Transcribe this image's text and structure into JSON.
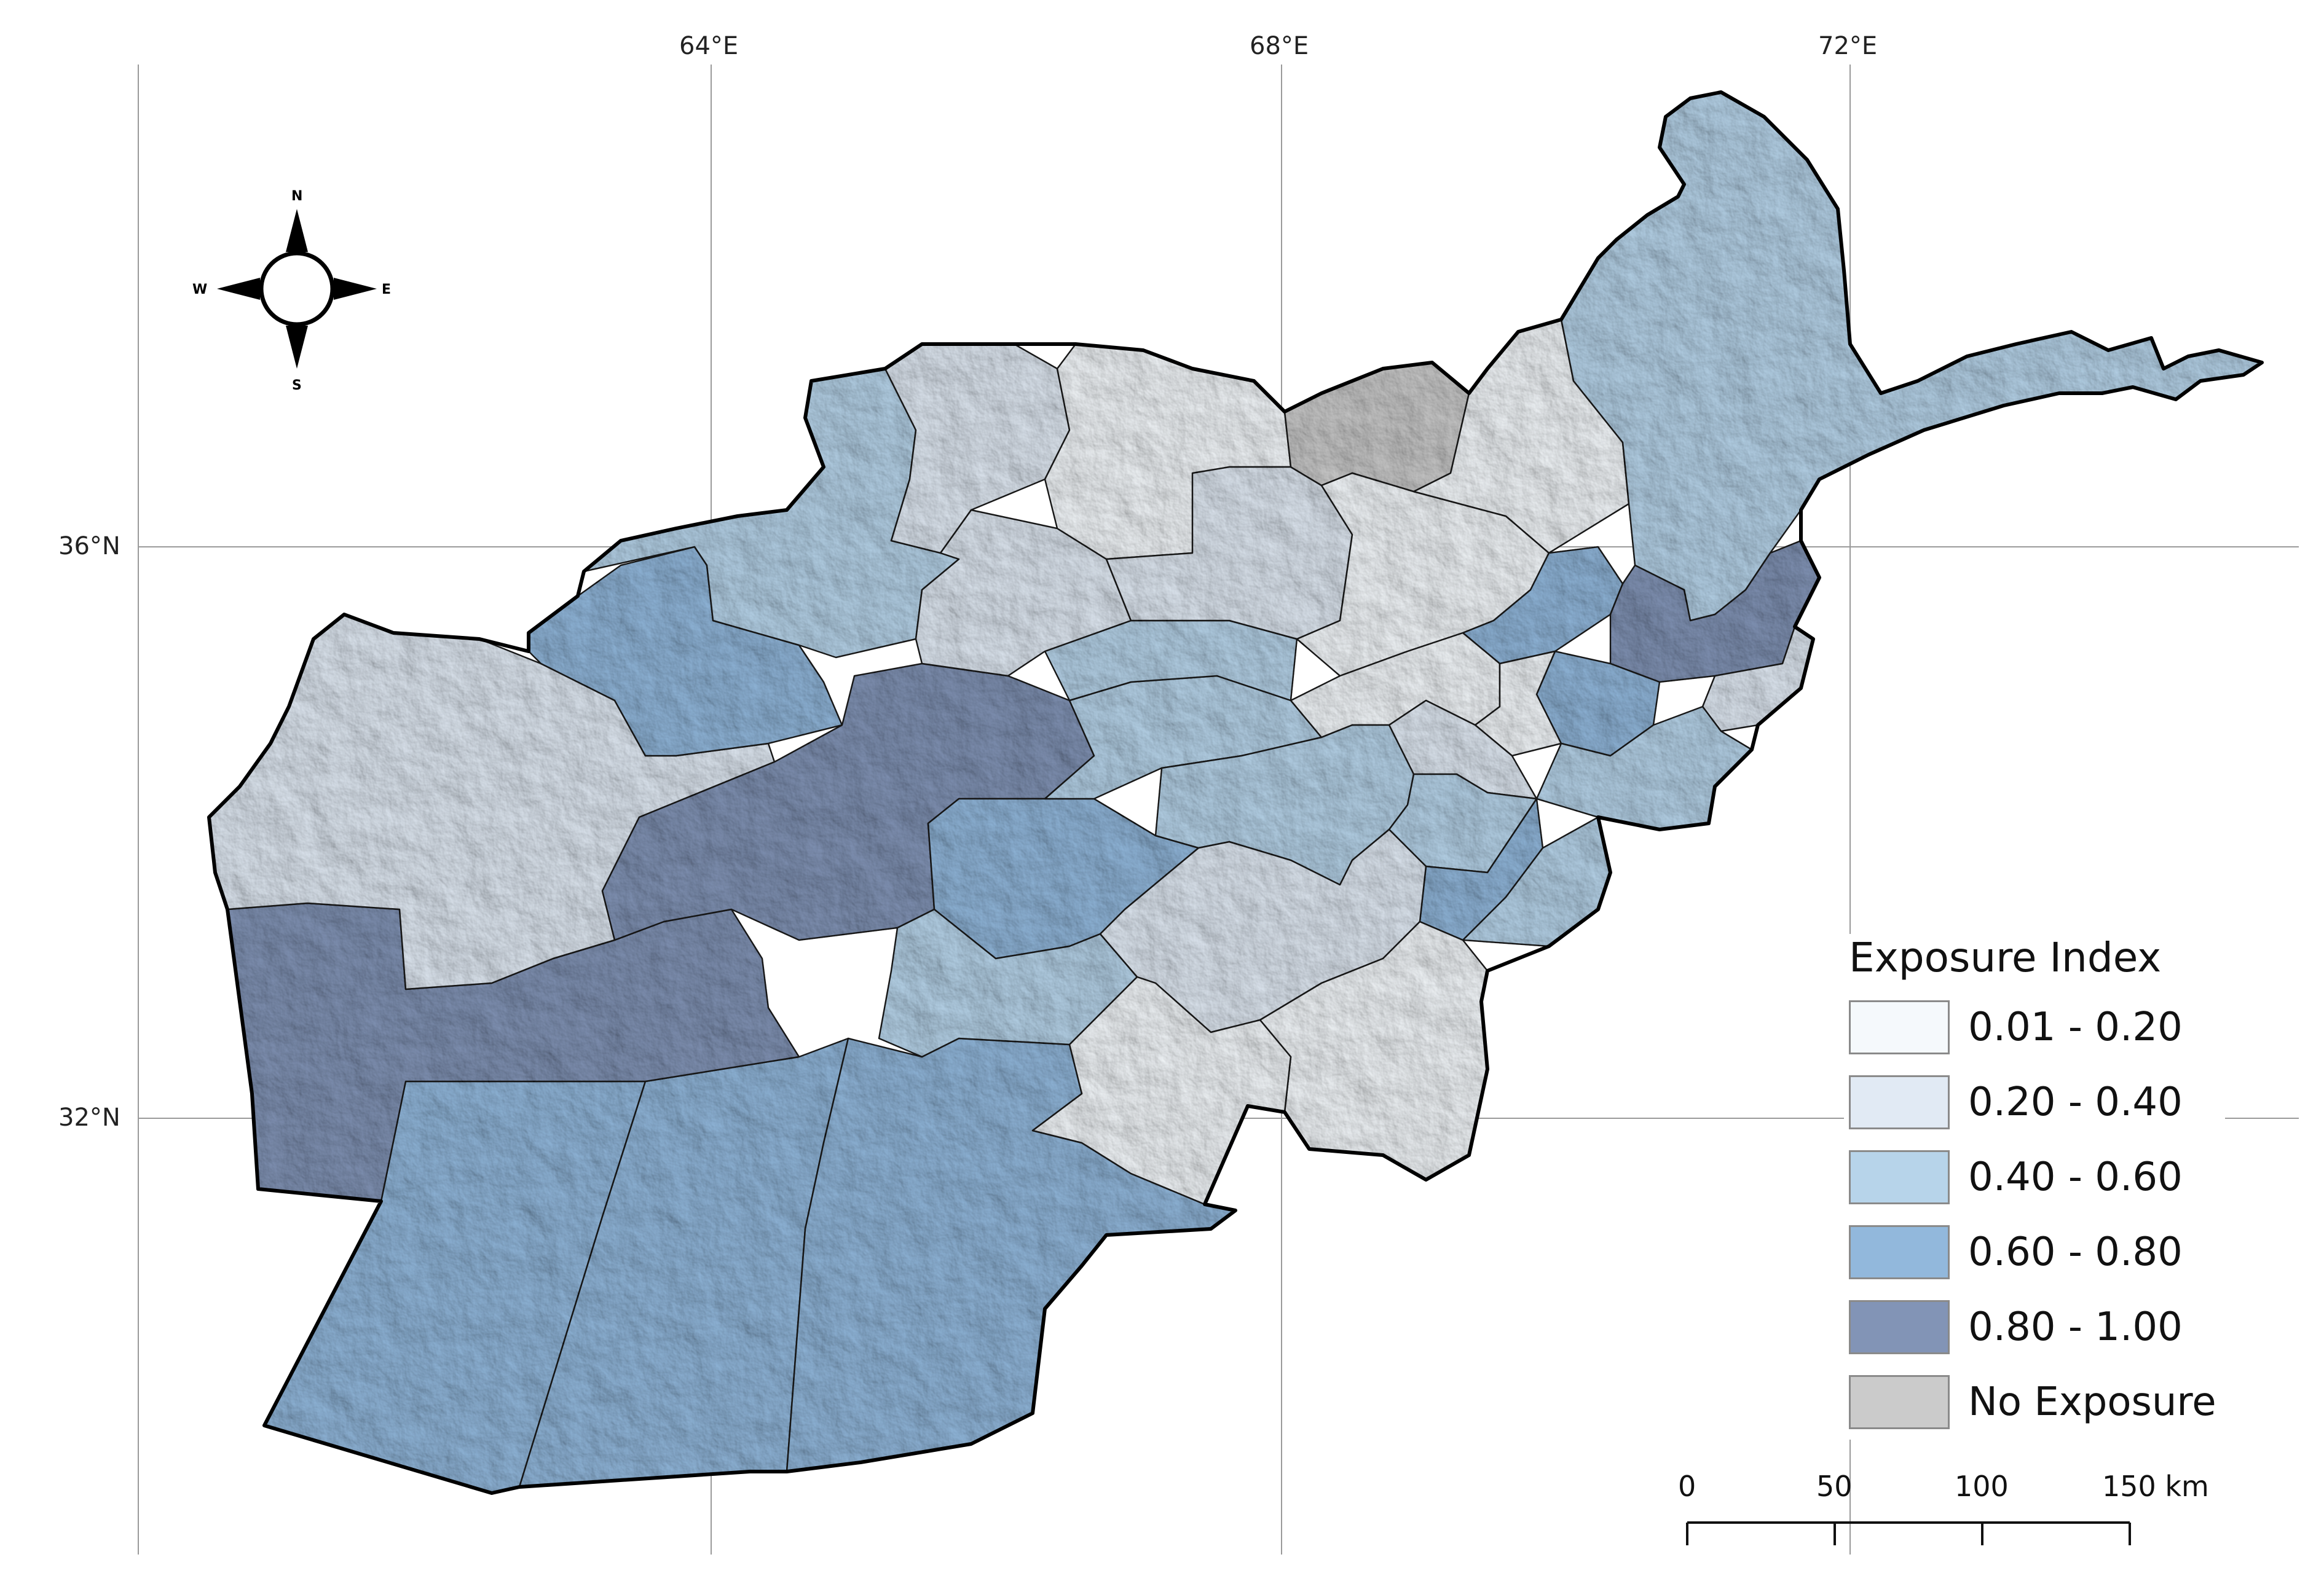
{
  "grid": {
    "longitudes": [
      "64°E",
      "68°E",
      "72°E"
    ],
    "latitudes": [
      "36°N",
      "32°N"
    ]
  },
  "compass": {
    "north": "N",
    "south": "S",
    "east": "E",
    "west": "W"
  },
  "legend": {
    "title": "Exposure Index",
    "classes": [
      {
        "label": "0.01 - 0.20",
        "color": "#f5f9fc"
      },
      {
        "label": "0.20 - 0.40",
        "color": "#e1eaf4"
      },
      {
        "label": "0.40 - 0.60",
        "color": "#b7d4ea"
      },
      {
        "label": "0.60 - 0.80",
        "color": "#92b8dc"
      },
      {
        "label": "0.80 - 1.00",
        "color": "#8294b6"
      },
      {
        "label": "No Exposure",
        "color": "#cbcbcb"
      }
    ]
  },
  "scale_bar": {
    "ticks": [
      "0",
      "50",
      "100",
      "150 km"
    ]
  },
  "map": {
    "country": "Afghanistan",
    "terrain_shading": true
  }
}
